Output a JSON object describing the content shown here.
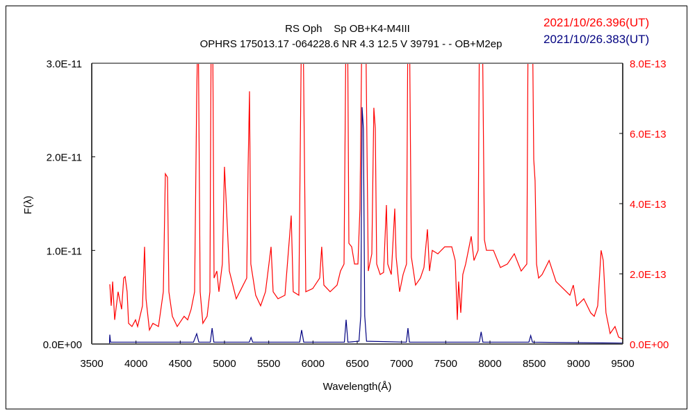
{
  "chart_data": {
    "type": "line",
    "title": [
      "RS Oph    Sp OB+K4-M4III",
      "OPHRS 175013.17 -064228.6 NR 4.3 12.5  V 39791 - - OB+M2ep"
    ],
    "xlabel": "Wavelength(Å)",
    "ylabel": "F(λ)",
    "xlim": [
      3500,
      9500
    ],
    "xticks": [
      "3500",
      "4000",
      "4500",
      "5000",
      "5500",
      "6000",
      "6500",
      "7000",
      "7500",
      "8000",
      "8500",
      "9000",
      "9500"
    ],
    "ylim_left": [
      0,
      3e-11
    ],
    "yticks_left": [
      "0.0E+00",
      "1.0E-11",
      "2.0E-11",
      "3.0E-11"
    ],
    "ylim_right": [
      0,
      8e-13
    ],
    "yticks_right": [
      "0.0E+00",
      "2.0E-13",
      "4.0E-13",
      "6.0E-13",
      "8.0E-13"
    ],
    "grid": false,
    "colors": {
      "red": "#ff0000",
      "blue": "#000080",
      "axis": "#000000"
    },
    "series": [
      {
        "name": "2021/10/26.396(UT)",
        "axis": "right",
        "unit": "1E-13",
        "color": "#ff0000",
        "points": [
          [
            3704,
            1.7
          ],
          [
            3720,
            1.09
          ],
          [
            3736,
            1.78
          ],
          [
            3759,
            0.69
          ],
          [
            3798,
            1.49
          ],
          [
            3838,
            0.99
          ],
          [
            3861,
            1.88
          ],
          [
            3877,
            1.92
          ],
          [
            3900,
            1.49
          ],
          [
            3916,
            0.59
          ],
          [
            3955,
            0.5
          ],
          [
            3995,
            0.69
          ],
          [
            4018,
            0.5
          ],
          [
            4073,
            1.09
          ],
          [
            4097,
            2.77
          ],
          [
            4113,
            1.29
          ],
          [
            4152,
            0.4
          ],
          [
            4191,
            0.59
          ],
          [
            4254,
            0.5
          ],
          [
            4309,
            1.49
          ],
          [
            4332,
            4.85
          ],
          [
            4356,
            4.75
          ],
          [
            4372,
            1.49
          ],
          [
            4411,
            0.79
          ],
          [
            4466,
            0.5
          ],
          [
            4544,
            0.79
          ],
          [
            4584,
            0.69
          ],
          [
            4623,
            0.99
          ],
          [
            4662,
            1.49
          ],
          [
            4686,
            7.03
          ],
          [
            4702,
            9.5
          ],
          [
            4725,
            1.49
          ],
          [
            4756,
            0.59
          ],
          [
            4804,
            0.79
          ],
          [
            4835,
            1.49
          ],
          [
            4851,
            9.5
          ],
          [
            4866,
            9.5
          ],
          [
            4882,
            1.88
          ],
          [
            4914,
            2.08
          ],
          [
            4937,
            1.49
          ],
          [
            4976,
            2.28
          ],
          [
            5000,
            5.05
          ],
          [
            5023,
            3.86
          ],
          [
            5055,
            2.08
          ],
          [
            5133,
            1.29
          ],
          [
            5173,
            1.49
          ],
          [
            5251,
            1.88
          ],
          [
            5267,
            5.05
          ],
          [
            5283,
            7.2
          ],
          [
            5298,
            2.28
          ],
          [
            5353,
            1.39
          ],
          [
            5408,
            1.09
          ],
          [
            5463,
            1.49
          ],
          [
            5526,
            2.77
          ],
          [
            5550,
            1.49
          ],
          [
            5605,
            1.29
          ],
          [
            5683,
            1.39
          ],
          [
            5754,
            3.66
          ],
          [
            5777,
            1.49
          ],
          [
            5840,
            1.39
          ],
          [
            5872,
            9.5
          ],
          [
            5887,
            9.5
          ],
          [
            5919,
            1.49
          ],
          [
            5997,
            1.58
          ],
          [
            6076,
            1.88
          ],
          [
            6099,
            2.77
          ],
          [
            6123,
            1.68
          ],
          [
            6194,
            1.49
          ],
          [
            6272,
            1.68
          ],
          [
            6311,
            2.08
          ],
          [
            6351,
            2.28
          ],
          [
            6374,
            9.5
          ],
          [
            6390,
            9.5
          ],
          [
            6406,
            2.87
          ],
          [
            6437,
            2.77
          ],
          [
            6469,
            2.28
          ],
          [
            6508,
            2.28
          ],
          [
            6531,
            3.86
          ],
          [
            6555,
            9.5
          ],
          [
            6594,
            9.5
          ],
          [
            6625,
            2.08
          ],
          [
            6665,
            2.57
          ],
          [
            6688,
            6.73
          ],
          [
            6704,
            6.14
          ],
          [
            6720,
            2.28
          ],
          [
            6759,
            1.98
          ],
          [
            6798,
            2.04
          ],
          [
            6830,
            3.96
          ],
          [
            6845,
            2.28
          ],
          [
            6885,
            1.98
          ],
          [
            6924,
            3.86
          ],
          [
            6940,
            2.48
          ],
          [
            6979,
            1.49
          ],
          [
            7018,
            1.98
          ],
          [
            7057,
            2.28
          ],
          [
            7073,
            9.5
          ],
          [
            7089,
            9.5
          ],
          [
            7112,
            2.48
          ],
          [
            7159,
            1.68
          ],
          [
            7214,
            1.88
          ],
          [
            7254,
            2.18
          ],
          [
            7293,
            3.27
          ],
          [
            7317,
            2.08
          ],
          [
            7348,
            2.67
          ],
          [
            7411,
            2.57
          ],
          [
            7489,
            2.77
          ],
          [
            7568,
            2.77
          ],
          [
            7607,
            2.38
          ],
          [
            7631,
            0.69
          ],
          [
            7646,
            1.78
          ],
          [
            7670,
            0.89
          ],
          [
            7693,
            1.98
          ],
          [
            7725,
            2.28
          ],
          [
            7788,
            3.07
          ],
          [
            7819,
            2.38
          ],
          [
            7866,
            2.67
          ],
          [
            7882,
            9.5
          ],
          [
            7913,
            9.5
          ],
          [
            7937,
            2.97
          ],
          [
            7960,
            2.67
          ],
          [
            8039,
            2.67
          ],
          [
            8118,
            2.18
          ],
          [
            8196,
            2.28
          ],
          [
            8275,
            2.57
          ],
          [
            8353,
            2.08
          ],
          [
            8416,
            2.28
          ],
          [
            8432,
            9.5
          ],
          [
            8479,
            9.5
          ],
          [
            8495,
            5.25
          ],
          [
            8510,
            4.65
          ],
          [
            8526,
            2.28
          ],
          [
            8550,
            1.88
          ],
          [
            8589,
            1.98
          ],
          [
            8668,
            2.38
          ],
          [
            8746,
            1.78
          ],
          [
            8864,
            1.49
          ],
          [
            8903,
            1.39
          ],
          [
            8942,
            1.68
          ],
          [
            8981,
            1.09
          ],
          [
            9060,
            1.29
          ],
          [
            9138,
            0.89
          ],
          [
            9178,
            0.79
          ],
          [
            9217,
            1.09
          ],
          [
            9256,
            2.67
          ],
          [
            9280,
            2.38
          ],
          [
            9311,
            0.89
          ],
          [
            9358,
            0.3
          ],
          [
            9413,
            0.5
          ],
          [
            9453,
            0.2
          ],
          [
            9500,
            0.14
          ]
        ]
      },
      {
        "name": "2021/10/26.383(UT)",
        "axis": "left",
        "unit": "1E-11",
        "color": "#000080",
        "points": [
          [
            3700,
            0
          ],
          [
            3704,
            0.1
          ],
          [
            3712,
            0.02
          ],
          [
            4650,
            0.02
          ],
          [
            4686,
            0.11
          ],
          [
            4710,
            0.02
          ],
          [
            4840,
            0.02
          ],
          [
            4860,
            0.17
          ],
          [
            4880,
            0.02
          ],
          [
            5280,
            0.02
          ],
          [
            5300,
            0.07
          ],
          [
            5320,
            0.02
          ],
          [
            5850,
            0.02
          ],
          [
            5872,
            0.15
          ],
          [
            5895,
            0.02
          ],
          [
            6355,
            0.02
          ],
          [
            6374,
            0.26
          ],
          [
            6395,
            0.02
          ],
          [
            6520,
            0.03
          ],
          [
            6540,
            0.3
          ],
          [
            6555,
            2.53
          ],
          [
            6570,
            2.3
          ],
          [
            6585,
            0.3
          ],
          [
            6605,
            0.03
          ],
          [
            7055,
            0.02
          ],
          [
            7073,
            0.17
          ],
          [
            7090,
            0.02
          ],
          [
            7880,
            0.02
          ],
          [
            7900,
            0.13
          ],
          [
            7920,
            0.02
          ],
          [
            8440,
            0.02
          ],
          [
            8460,
            0.09
          ],
          [
            8480,
            0.02
          ],
          [
            9500,
            0.01
          ]
        ]
      }
    ]
  }
}
